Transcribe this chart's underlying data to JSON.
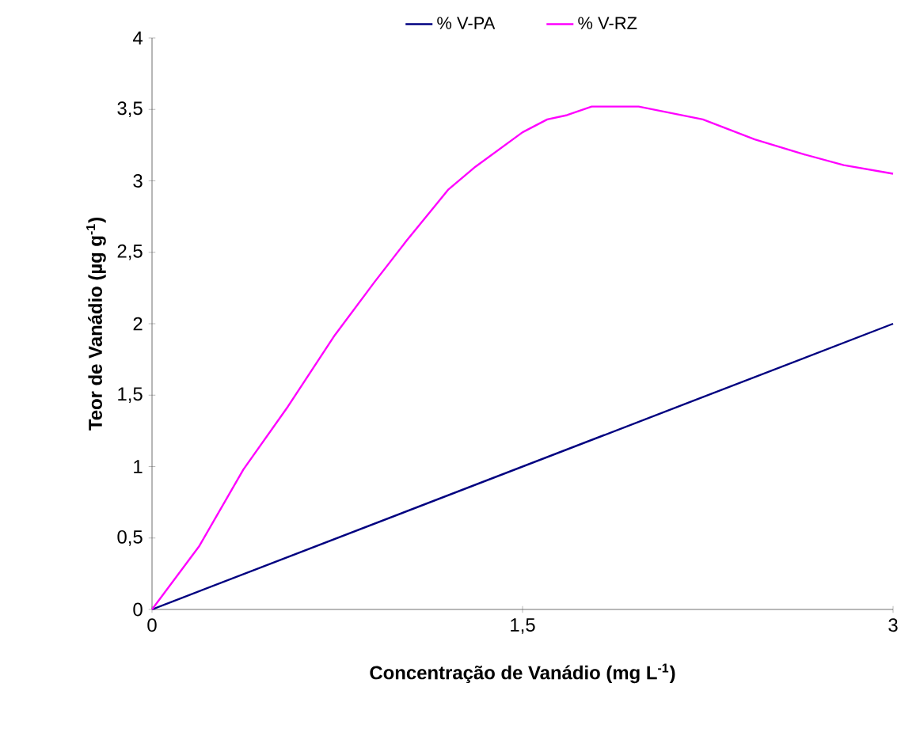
{
  "chart_data": {
    "type": "line",
    "xlabel": "Concentração de Vanádio (mg L$^{-1}$)",
    "ylabel": "Teor de Vanádio (µg g$^{-1}$)",
    "xlim": [
      0,
      3
    ],
    "ylim": [
      0,
      4
    ],
    "xticks": [
      0,
      {
        "value": 1.5,
        "label": "1,5"
      },
      3
    ],
    "yticks": [
      0,
      {
        "value": 0.5,
        "label": "0,5"
      },
      1,
      {
        "value": 1.5,
        "label": "1,5"
      },
      2,
      {
        "value": 2.5,
        "label": "2,5"
      },
      3,
      {
        "value": 3.5,
        "label": "3,5"
      },
      4
    ],
    "grid": false,
    "legend": "top",
    "marker": "none",
    "line_style": "solid",
    "series": [
      {
        "name": "% V-PA",
        "color": "#000080",
        "x": [
          0,
          3
        ],
        "values": [
          0,
          2
        ]
      },
      {
        "name": "% V-RZ",
        "color": "#ff00ff",
        "x": [
          0,
          0.19,
          0.37,
          0.55,
          0.74,
          0.9,
          1.03,
          1.2,
          1.31,
          1.5,
          1.6,
          1.68,
          1.78,
          1.97,
          2.23,
          2.44,
          2.63,
          2.8,
          3.0
        ],
        "values": [
          0,
          0.44,
          0.98,
          1.42,
          1.92,
          2.29,
          2.58,
          2.94,
          3.1,
          3.34,
          3.43,
          3.46,
          3.52,
          3.52,
          3.43,
          3.29,
          3.19,
          3.11,
          3.05
        ]
      }
    ]
  }
}
